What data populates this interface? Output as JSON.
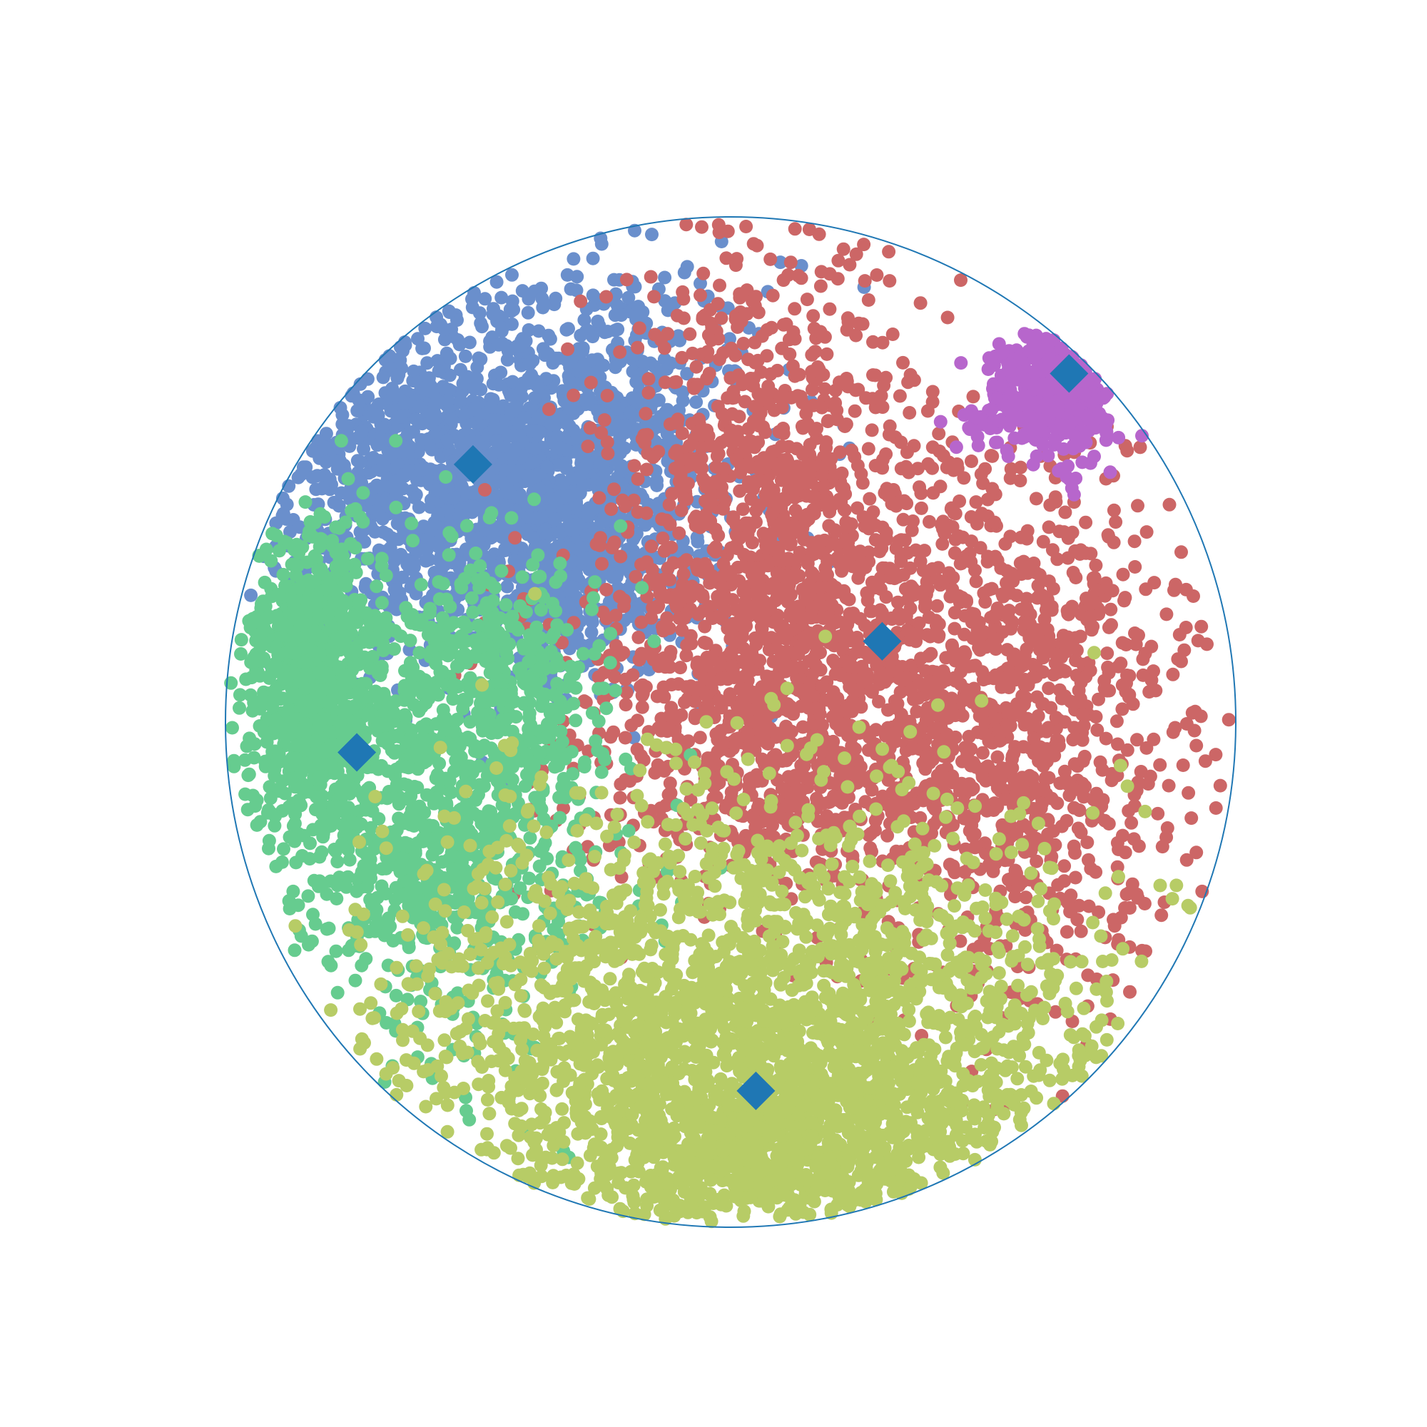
{
  "chart_data": {
    "type": "scatter",
    "title": "",
    "xlabel": "",
    "ylabel": "",
    "grid": false,
    "legend": "none",
    "axes_visible": false,
    "xlim": [
      -1.0,
      1.0
    ],
    "ylim": [
      -1.0,
      1.0
    ],
    "boundary": {
      "shape": "unit-circle",
      "radius": 1.0,
      "color": "#1f77b4"
    },
    "centroid_marker": {
      "shape": "diamond",
      "color": "#1f77b4"
    },
    "clusters": [
      {
        "color": "#6a8fcc",
        "centroid": [
          -0.51,
          0.51
        ],
        "points": 2200,
        "regions": [
          {
            "cx": -0.56,
            "cy": 0.48,
            "sx": 0.24,
            "sy": 0.17,
            "w": 0.55
          },
          {
            "cx": -0.33,
            "cy": 0.58,
            "sx": 0.19,
            "sy": 0.19,
            "w": 0.3
          },
          {
            "cx": -0.32,
            "cy": 0.3,
            "sx": 0.12,
            "sy": 0.13,
            "w": 0.15
          }
        ]
      },
      {
        "color": "#cc6666",
        "centroid": [
          0.3,
          0.16
        ],
        "points": 3000,
        "regions": [
          {
            "cx": 0.05,
            "cy": 0.45,
            "sx": 0.14,
            "sy": 0.3,
            "w": 0.28
          },
          {
            "cx": 0.27,
            "cy": 0.18,
            "sx": 0.28,
            "sy": 0.22,
            "w": 0.34
          },
          {
            "cx": 0.55,
            "cy": -0.08,
            "sx": 0.2,
            "sy": 0.25,
            "w": 0.24
          },
          {
            "cx": 0.05,
            "cy": -0.05,
            "sx": 0.2,
            "sy": 0.15,
            "w": 0.14
          }
        ]
      },
      {
        "color": "#66cc8f",
        "centroid": [
          -0.74,
          -0.06
        ],
        "points": 2000,
        "regions": [
          {
            "cx": -0.83,
            "cy": 0.09,
            "sx": 0.07,
            "sy": 0.15,
            "w": 0.4
          },
          {
            "cx": -0.55,
            "cy": -0.2,
            "sx": 0.16,
            "sy": 0.22,
            "w": 0.45
          },
          {
            "cx": -0.47,
            "cy": 0.1,
            "sx": 0.1,
            "sy": 0.12,
            "w": 0.15
          }
        ]
      },
      {
        "color": "#b7cc66",
        "centroid": [
          0.05,
          -0.73
        ],
        "points": 3000,
        "regions": [
          {
            "cx": 0.05,
            "cy": -0.64,
            "sx": 0.35,
            "sy": 0.23,
            "w": 0.85
          },
          {
            "cx": 0.1,
            "cy": -0.85,
            "sx": 0.18,
            "sy": 0.08,
            "w": 0.15
          }
        ]
      },
      {
        "color": "#b766cc",
        "centroid": [
          0.67,
          0.69
        ],
        "points": 500,
        "regions": [
          {
            "cx": 0.64,
            "cy": 0.65,
            "sx": 0.07,
            "sy": 0.06,
            "w": 1.0
          }
        ]
      }
    ]
  }
}
